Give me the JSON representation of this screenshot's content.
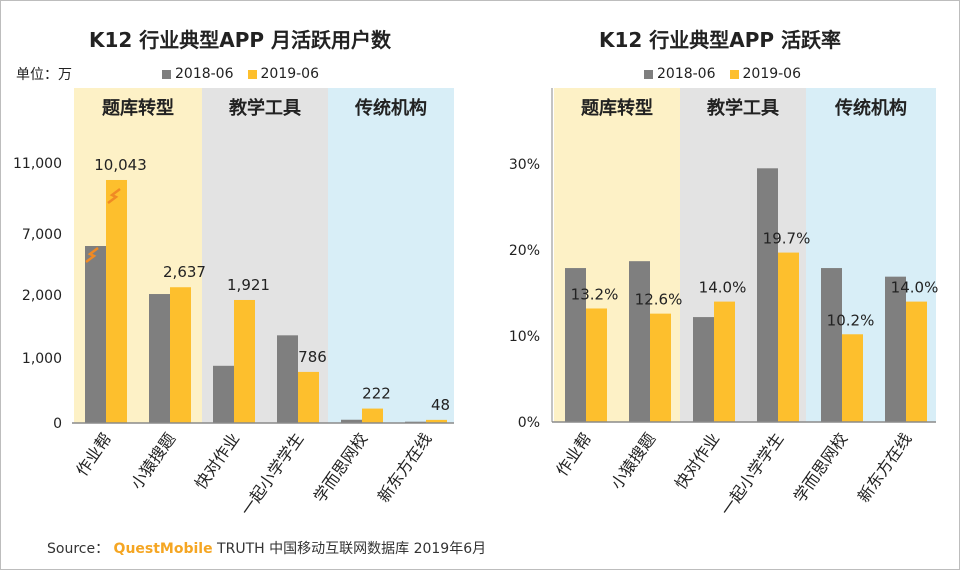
{
  "colors": {
    "s1": "#7f7f7f",
    "s2": "#fdbf2d",
    "band1": "#fdf1c6",
    "band2": "#e3e3e3",
    "band3": "#d8eef7",
    "axis": "#8a8a8a",
    "grid": "#d9d9d9"
  },
  "chart_data": [
    {
      "type": "bar",
      "title": "K12 行业典型APP 月活跃用户数",
      "unit_label": "单位：万",
      "legend": [
        "2018-06",
        "2019-06"
      ],
      "groups": [
        "题库转型",
        "教学工具",
        "传统机构"
      ],
      "categories": [
        "作业帮",
        "小猿搜题",
        "快对作业",
        "一起小学学生",
        "学而思网校",
        "新东方在线"
      ],
      "y_ticks": [
        "0",
        "1,000",
        "2,000",
        "7,000",
        "11,000"
      ],
      "y_scale": "broken",
      "series": [
        {
          "name": "2018-06",
          "values": [
            null,
            2080,
            880,
            1360,
            50,
            20
          ]
        },
        {
          "name": "2019-06",
          "values": [
            10043,
            2637,
            1921,
            786,
            222,
            48
          ]
        }
      ],
      "data_labels": [
        "10,043",
        "2,637",
        "1,921",
        "786",
        "222",
        "48"
      ]
    },
    {
      "type": "bar",
      "title": "K12 行业典型APP 活跃率",
      "legend": [
        "2018-06",
        "2019-06"
      ],
      "groups": [
        "题库转型",
        "教学工具",
        "传统机构"
      ],
      "categories": [
        "作业帮",
        "小猿搜题",
        "快对作业",
        "一起小学学生",
        "学而思网校",
        "新东方在线"
      ],
      "y_ticks": [
        "0%",
        "10%",
        "20%",
        "30%"
      ],
      "ylim": [
        0,
        30
      ],
      "series": [
        {
          "name": "2018-06",
          "values": [
            17.9,
            18.7,
            12.2,
            29.5,
            17.9,
            16.9
          ]
        },
        {
          "name": "2019-06",
          "values": [
            13.2,
            12.6,
            14.0,
            19.7,
            10.2,
            14.0
          ]
        }
      ],
      "data_labels": [
        "13.2%",
        "12.6%",
        "14.0%",
        "19.7%",
        "10.2%",
        "14.0%"
      ]
    }
  ],
  "footer": {
    "source_label": "Source：",
    "brand": "QuestMobile",
    "rest": " TRUTH 中国移动互联网数据库 2019年6月"
  }
}
